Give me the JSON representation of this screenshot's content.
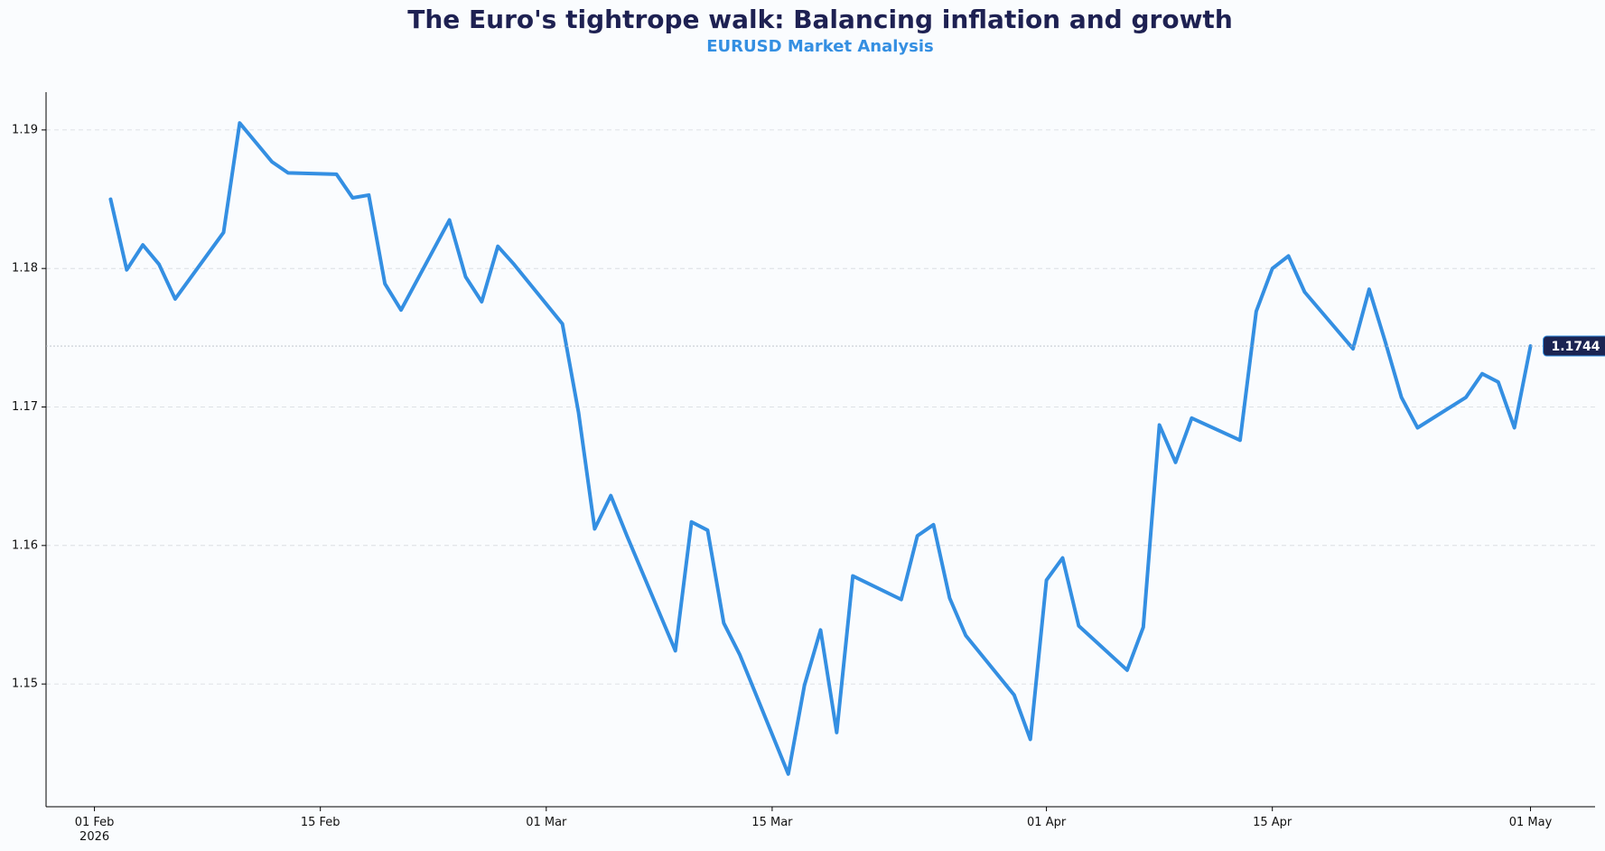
{
  "chart_data": {
    "type": "line",
    "title": "The Euro's tightrope walk: Balancing inflation and growth",
    "subtitle": "EURUSD Market Analysis",
    "color": "#348fe2",
    "x": [
      "2026-02-02",
      "2026-02-03",
      "2026-02-04",
      "2026-02-05",
      "2026-02-06",
      "2026-02-09",
      "2026-02-10",
      "2026-02-11",
      "2026-02-12",
      "2026-02-13",
      "2026-02-16",
      "2026-02-17",
      "2026-02-18",
      "2026-02-19",
      "2026-02-20",
      "2026-02-23",
      "2026-02-24",
      "2026-02-25",
      "2026-02-26",
      "2026-02-27",
      "2026-03-02",
      "2026-03-03",
      "2026-03-04",
      "2026-03-05",
      "2026-03-06",
      "2026-03-09",
      "2026-03-10",
      "2026-03-11",
      "2026-03-12",
      "2026-03-13",
      "2026-03-16",
      "2026-03-17",
      "2026-03-18",
      "2026-03-19",
      "2026-03-20",
      "2026-03-23",
      "2026-03-24",
      "2026-03-25",
      "2026-03-26",
      "2026-03-27",
      "2026-03-30",
      "2026-03-31",
      "2026-04-01",
      "2026-04-02",
      "2026-04-03",
      "2026-04-06",
      "2026-04-07",
      "2026-04-08",
      "2026-04-09",
      "2026-04-10",
      "2026-04-13",
      "2026-04-14",
      "2026-04-15",
      "2026-04-16",
      "2026-04-17",
      "2026-04-20",
      "2026-04-21",
      "2026-04-22",
      "2026-04-23",
      "2026-04-24",
      "2026-04-27",
      "2026-04-28",
      "2026-04-29",
      "2026-04-30",
      "2026-05-01"
    ],
    "values": [
      1.185,
      1.1799,
      1.1817,
      1.1803,
      1.1778,
      1.1826,
      1.1905,
      1.1891,
      1.1877,
      1.1869,
      1.1868,
      1.1851,
      1.1853,
      1.1789,
      1.177,
      1.1835,
      1.1794,
      1.1776,
      1.1816,
      1.1803,
      1.176,
      1.1696,
      1.1612,
      1.1636,
      1.1607,
      1.1524,
      1.1617,
      1.1611,
      1.1544,
      1.1521,
      1.1435,
      1.1499,
      1.1539,
      1.1465,
      1.1578,
      1.1561,
      1.1607,
      1.1615,
      1.1562,
      1.1535,
      1.1492,
      1.146,
      1.1575,
      1.1591,
      1.1542,
      1.151,
      1.1541,
      1.1687,
      1.166,
      1.1692,
      1.1676,
      1.1769,
      1.18,
      1.1809,
      1.1783,
      1.1742,
      1.1785,
      1.1747,
      1.1707,
      1.1685,
      1.1707,
      1.1724,
      1.1718,
      1.1685,
      1.1744
    ],
    "xlim": [
      "2026-01-29",
      "2026-05-05"
    ],
    "xticks": [
      {
        "value": "2026-02-01",
        "label": "01 Feb\n2026"
      },
      {
        "value": "2026-02-15",
        "label": "15 Feb"
      },
      {
        "value": "2026-03-01",
        "label": "01 Mar"
      },
      {
        "value": "2026-03-15",
        "label": "15 Mar"
      },
      {
        "value": "2026-04-01",
        "label": "01 Apr"
      },
      {
        "value": "2026-04-15",
        "label": "15 Apr"
      },
      {
        "value": "2026-05-01",
        "label": "01 May"
      }
    ],
    "ylim": [
      1.14114,
      1.19273
    ],
    "yticks": [
      1.15,
      1.16,
      1.17,
      1.18,
      1.19
    ],
    "grid": true,
    "annotations": [
      {
        "value": 1.1744,
        "label": "1.1744"
      }
    ]
  }
}
